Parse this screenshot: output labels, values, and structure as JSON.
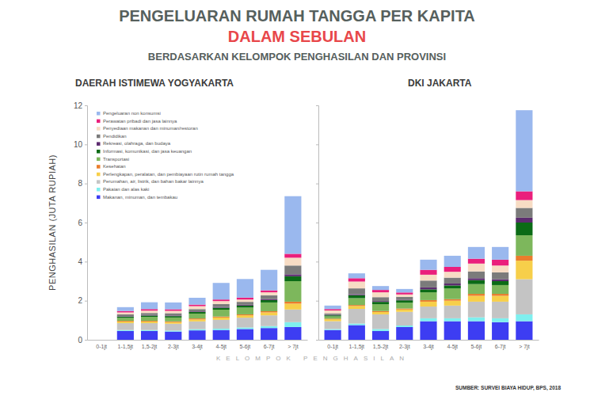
{
  "page": {
    "title": "PENGELUARAN RUMAH TANGGA PER KAPITA",
    "title_highlight": "DALAM SEBULAN",
    "subtitle": "BERDASARKAN KELOMPOK PENGHASILAN DAN PROVINSI",
    "source": "SUMBER: SURVEI BIAYA HIDUP, BPS, 2018"
  },
  "chart_data": [
    {
      "type": "bar",
      "stacked": true,
      "title": "DAERAH ISTIMEWA YOGYAKARTA",
      "y_label": "PENGHASILAN (JUTA RUPIAH)",
      "x_label": "KELOMPOK PENGHASILAN",
      "legend": "top-left",
      "categories": [
        "0-1jt",
        "1-1,5jt",
        "1,5-2jt",
        "2-3jt",
        "3-4jt",
        "4-5jt",
        "5-6jt",
        "6-7jt",
        "> 7jt"
      ],
      "ylim": [
        0,
        12
      ],
      "yticks": [
        0,
        2,
        4,
        6,
        8,
        10,
        12
      ],
      "series": [
        {
          "name": "Makanan, minuman, dan tembakau",
          "color": "#3d3df2",
          "values": [
            null,
            0.45,
            0.45,
            0.42,
            0.48,
            0.5,
            0.55,
            0.6,
            0.65
          ]
        },
        {
          "name": "Pakaian dan alas kaki",
          "color": "#7fefef",
          "values": [
            null,
            0.05,
            0.05,
            0.05,
            0.06,
            0.07,
            0.08,
            0.1,
            0.25
          ]
        },
        {
          "name": "Perumahan, air, listrik, dan bahan bakar lainnya",
          "color": "#c4c4c4",
          "values": [
            null,
            0.35,
            0.35,
            0.35,
            0.4,
            0.45,
            0.5,
            0.55,
            0.65
          ]
        },
        {
          "name": "Perlengkapan, peralatan, dan pembiayaan rutin rumah tangga",
          "color": "#f7cf4a",
          "values": [
            null,
            0.08,
            0.08,
            0.08,
            0.1,
            0.12,
            0.12,
            0.15,
            0.3
          ]
        },
        {
          "name": "Kesehatan",
          "color": "#ea7d2c",
          "values": [
            null,
            0.04,
            0.04,
            0.04,
            0.05,
            0.05,
            0.05,
            0.06,
            0.1
          ]
        },
        {
          "name": "Transportasi",
          "color": "#7db75c",
          "values": [
            null,
            0.15,
            0.2,
            0.2,
            0.25,
            0.35,
            0.35,
            0.45,
            1.05
          ]
        },
        {
          "name": "Informasi, komunikasi, dan jasa keuangan",
          "color": "#0b6b16",
          "values": [
            null,
            0.06,
            0.07,
            0.07,
            0.08,
            0.1,
            0.1,
            0.12,
            0.25
          ]
        },
        {
          "name": "Rekreasi, olahraga, dan budaya",
          "color": "#5c2b6f",
          "values": [
            null,
            0.02,
            0.03,
            0.03,
            0.03,
            0.04,
            0.04,
            0.05,
            0.1
          ]
        },
        {
          "name": "Pendidikan",
          "color": "#7b7b7b",
          "values": [
            null,
            0.1,
            0.1,
            0.12,
            0.12,
            0.15,
            0.15,
            0.2,
            0.45
          ]
        },
        {
          "name": "Penyediaan makanan dan minuman/restoran",
          "color": "#f7dcc4",
          "values": [
            null,
            0.1,
            0.12,
            0.12,
            0.15,
            0.15,
            0.12,
            0.15,
            0.4
          ]
        },
        {
          "name": "Perawatan pribadi dan jasa lainnya",
          "color": "#ea1f7c",
          "values": [
            null,
            0.07,
            0.08,
            0.08,
            0.08,
            0.08,
            0.1,
            0.1,
            0.2
          ]
        },
        {
          "name": "Pengeluaran non konsumsi",
          "color": "#9ab8ee",
          "values": [
            null,
            0.2,
            0.35,
            0.35,
            0.35,
            0.85,
            0.95,
            1.05,
            2.95
          ]
        }
      ]
    },
    {
      "type": "bar",
      "stacked": true,
      "title": "DKI JAKARTA",
      "tick_labels": "x",
      "categories": [
        "0-1jt",
        "1-1,5jt",
        "1,5-2jt",
        "2-3jt",
        "3-4jt",
        "4-5jt",
        "5-6jt",
        "6-7jt",
        "> 7jt"
      ],
      "ylim": [
        0,
        12
      ],
      "yticks": [
        0,
        2,
        4,
        6,
        8,
        10,
        12
      ],
      "series": [
        {
          "color": "#3d3df2",
          "values": [
            0.5,
            0.75,
            0.45,
            0.65,
            0.95,
            0.95,
            0.95,
            0.9,
            0.95
          ]
        },
        {
          "color": "#7fefef",
          "values": [
            0.05,
            0.08,
            0.1,
            0.08,
            0.15,
            0.15,
            0.2,
            0.2,
            0.35
          ]
        },
        {
          "color": "#c4c4c4",
          "values": [
            0.4,
            0.75,
            0.75,
            0.7,
            0.6,
            0.65,
            0.8,
            0.85,
            1.8
          ]
        },
        {
          "color": "#f7cf4a",
          "values": [
            0.1,
            0.15,
            0.12,
            0.12,
            0.25,
            0.25,
            0.3,
            0.3,
            0.95
          ]
        },
        {
          "color": "#ea7d2c",
          "values": [
            0.03,
            0.05,
            0.05,
            0.05,
            0.08,
            0.08,
            0.1,
            0.1,
            0.25
          ]
        },
        {
          "color": "#7db75c",
          "values": [
            0.12,
            0.35,
            0.35,
            0.3,
            0.4,
            0.55,
            0.5,
            0.45,
            1.05
          ]
        },
        {
          "color": "#0b6b16",
          "values": [
            0.05,
            0.15,
            0.12,
            0.12,
            0.15,
            0.15,
            0.2,
            0.2,
            0.65
          ]
        },
        {
          "color": "#5c2b6f",
          "values": [
            0.02,
            0.05,
            0.04,
            0.03,
            0.1,
            0.1,
            0.1,
            0.1,
            0.25
          ]
        },
        {
          "color": "#7b7b7b",
          "values": [
            0.08,
            0.3,
            0.2,
            0.15,
            0.35,
            0.3,
            0.35,
            0.35,
            0.5
          ]
        },
        {
          "color": "#f7dcc4",
          "values": [
            0.15,
            0.35,
            0.25,
            0.12,
            0.3,
            0.3,
            0.4,
            0.35,
            0.4
          ]
        },
        {
          "color": "#ea1f7c",
          "values": [
            0.07,
            0.17,
            0.12,
            0.1,
            0.25,
            0.25,
            0.25,
            0.3,
            0.45
          ]
        },
        {
          "color": "#9ab8ee",
          "values": [
            0.18,
            0.25,
            0.2,
            0.18,
            0.52,
            0.57,
            0.6,
            0.65,
            4.15
          ]
        }
      ]
    }
  ]
}
